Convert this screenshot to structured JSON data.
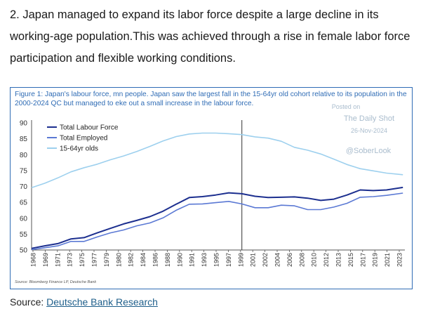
{
  "intro_text": "2. Japan managed to expand its labor force despite a large decline in its working-age population.This was achieved through a rise in female labor force participation and flexible working conditions.",
  "source": {
    "prefix": "Source: ",
    "link_text": "Deutsche Bank Research"
  },
  "watermark": {
    "posted": "Posted on",
    "name": "The Daily Shot",
    "date": "26-Nov-2024",
    "handle": "@SoberLook"
  },
  "chart_data": {
    "type": "line",
    "title": "Figure 1: Japan's labour force, mn people. Japan saw the largest fall in the 15-64yr old cohort relative to its population in the 2000-2024 QC but managed to eke out a small increase in the labour force.",
    "source_note": "Source: Bloomberg Finance LP, Deutsche Bank",
    "xlabel": "",
    "ylabel": "",
    "xlim": [
      1968,
      2024.8
    ],
    "ylim": [
      50,
      90
    ],
    "yticks": [
      50,
      55,
      60,
      65,
      70,
      75,
      80,
      85,
      90
    ],
    "xtick_labels": [
      "1968",
      "1969",
      "1971",
      "1973",
      "1975",
      "1977",
      "1979",
      "1980",
      "1982",
      "1984",
      "1986",
      "1988",
      "1990",
      "1991",
      "1993",
      "1995",
      "1997",
      "1999",
      "2001",
      "2002",
      "2004",
      "2006",
      "2008",
      "2010",
      "2012",
      "2013",
      "2015",
      "2017",
      "2019",
      "2021",
      "2023"
    ],
    "vline_x": 2000.0,
    "legend_position": "top-left",
    "colors": {
      "labour_force": "#1c2f8f",
      "employed": "#5b79d4",
      "working_age": "#9dd0ee",
      "axis": "#555555",
      "frame": "#2f6cb5"
    },
    "series": [
      {
        "name": "Total Labour Force",
        "x": [
          1968,
          1970,
          1972,
          1974,
          1976,
          1978,
          1980,
          1982,
          1984,
          1986,
          1988,
          1990,
          1992,
          1994,
          1996,
          1998,
          2000,
          2002,
          2004,
          2006,
          2008,
          2010,
          2012,
          2014,
          2016,
          2018,
          2020,
          2022,
          2024.5
        ],
        "y": [
          50.5,
          51.3,
          52.0,
          53.5,
          53.9,
          55.4,
          56.8,
          58.2,
          59.3,
          60.5,
          62.2,
          64.4,
          66.5,
          66.8,
          67.3,
          68.0,
          67.7,
          66.9,
          66.5,
          66.6,
          66.7,
          66.3,
          65.6,
          66.0,
          67.3,
          68.9,
          68.7,
          68.9,
          69.7
        ]
      },
      {
        "name": "Total Employed",
        "x": [
          1968,
          1970,
          1972,
          1974,
          1976,
          1978,
          1980,
          1982,
          1984,
          1986,
          1988,
          1990,
          1992,
          1994,
          1996,
          1998,
          2000,
          2002,
          2004,
          2006,
          2008,
          2010,
          2012,
          2014,
          2016,
          2018,
          2020,
          2022,
          2024.5
        ],
        "y": [
          50.1,
          50.7,
          51.3,
          52.7,
          52.7,
          54.1,
          55.4,
          56.3,
          57.6,
          58.5,
          60.1,
          62.5,
          64.4,
          64.5,
          64.9,
          65.3,
          64.5,
          63.3,
          63.3,
          64.1,
          63.9,
          62.7,
          62.7,
          63.5,
          64.7,
          66.6,
          66.8,
          67.2,
          67.9
        ]
      },
      {
        "name": "15-64yr olds",
        "x": [
          1968,
          1970,
          1972,
          1974,
          1976,
          1978,
          1980,
          1982,
          1984,
          1986,
          1988,
          1990,
          1992,
          1994,
          1996,
          1998,
          2000,
          2002,
          2004,
          2006,
          2008,
          2010,
          2012,
          2014,
          2016,
          2018,
          2020,
          2022,
          2024.5
        ],
        "y": [
          69.6,
          71.0,
          72.7,
          74.6,
          75.9,
          77.0,
          78.4,
          79.6,
          81.0,
          82.6,
          84.3,
          85.7,
          86.5,
          86.8,
          86.8,
          86.6,
          86.3,
          85.6,
          85.2,
          84.2,
          82.3,
          81.4,
          80.2,
          78.6,
          76.9,
          75.6,
          74.9,
          74.2,
          73.7
        ]
      }
    ]
  }
}
